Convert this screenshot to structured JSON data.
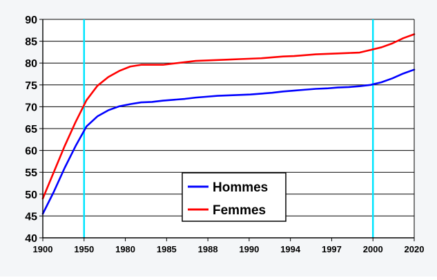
{
  "chart_data": {
    "type": "line",
    "title": "",
    "xlabel": "",
    "ylabel": "",
    "x_ticks": [
      "1900",
      "1950",
      "1980",
      "1985",
      "1988",
      "1990",
      "1994",
      "1997",
      "2000",
      "2020"
    ],
    "ylim": [
      40,
      90
    ],
    "y_ticks": [
      40,
      45,
      50,
      55,
      60,
      65,
      70,
      75,
      80,
      85,
      90
    ],
    "grid": "horizontal",
    "legend_position": "center-bottom",
    "reference_lines_x": [
      "1950",
      "2000"
    ],
    "series": [
      {
        "name": "Hommes",
        "color": "#0000ff",
        "values": [
          45.5,
          50.5,
          56.0,
          61.0,
          65.5,
          67.8,
          69.2,
          70.1,
          70.6,
          71.0,
          71.1,
          71.4,
          71.6,
          71.8,
          72.1,
          72.3,
          72.5,
          72.6,
          72.7,
          72.8,
          73.0,
          73.2,
          73.5,
          73.7,
          73.9,
          74.1,
          74.2,
          74.4,
          74.5,
          74.7,
          75.0,
          75.6,
          76.5,
          77.6,
          78.5
        ]
      },
      {
        "name": "Femmes",
        "color": "#ff0000",
        "values": [
          49.0,
          55.0,
          61.0,
          66.5,
          71.5,
          74.8,
          76.8,
          78.2,
          79.2,
          79.6,
          79.6,
          79.6,
          79.9,
          80.2,
          80.5,
          80.6,
          80.7,
          80.8,
          80.9,
          81.0,
          81.1,
          81.3,
          81.5,
          81.6,
          81.8,
          82.0,
          82.1,
          82.2,
          82.3,
          82.4,
          83.0,
          83.6,
          84.5,
          85.7,
          86.6
        ]
      }
    ]
  },
  "colors": {
    "background": "#f4f6f8",
    "plot_background": "#ffffff",
    "grid": "#000000",
    "reference_line": "#00e5ff"
  }
}
